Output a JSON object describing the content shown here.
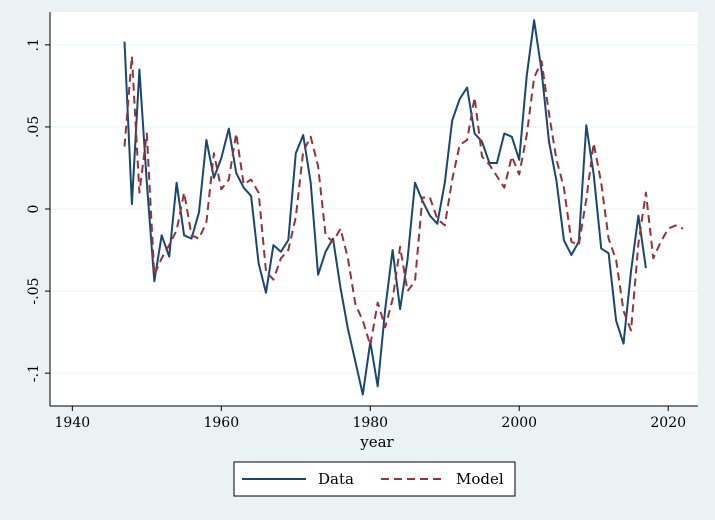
{
  "chart_data": {
    "type": "line",
    "title": "",
    "xlabel": "year",
    "ylabel": "",
    "xlim": [
      1937,
      2024
    ],
    "ylim": [
      -0.12,
      0.12
    ],
    "x_ticks": [
      1940,
      1960,
      1980,
      2000,
      2020
    ],
    "x_tick_labels": [
      "1940",
      "1960",
      "1980",
      "2000",
      "2020"
    ],
    "y_ticks": [
      -0.1,
      -0.05,
      0,
      0.05,
      0.1
    ],
    "y_tick_labels": [
      "-.1",
      "-.05",
      "0",
      ".05",
      ".1"
    ],
    "grid": true,
    "legend_position": "bottom",
    "series": [
      {
        "name": "Data",
        "color": "#1a476f",
        "dash": "solid",
        "x": [
          1947,
          1948,
          1949,
          1950,
          1951,
          1952,
          1953,
          1954,
          1955,
          1956,
          1957,
          1958,
          1959,
          1960,
          1961,
          1962,
          1963,
          1964,
          1965,
          1966,
          1967,
          1968,
          1969,
          1970,
          1971,
          1972,
          1973,
          1974,
          1975,
          1976,
          1977,
          1978,
          1979,
          1980,
          1981,
          1982,
          1983,
          1984,
          1985,
          1986,
          1987,
          1988,
          1989,
          1990,
          1991,
          1992,
          1993,
          1994,
          1995,
          1996,
          1997,
          1998,
          1999,
          2000,
          2001,
          2002,
          2003,
          2004,
          2005,
          2006,
          2007,
          2008,
          2009,
          2010,
          2011,
          2012,
          2013,
          2014,
          2015,
          2016,
          2017
        ],
        "values": [
          0.102,
          0.003,
          0.085,
          0.016,
          -0.044,
          -0.016,
          -0.029,
          0.016,
          -0.016,
          -0.018,
          -0.002,
          0.042,
          0.019,
          0.031,
          0.049,
          0.022,
          0.013,
          0.008,
          -0.033,
          -0.051,
          -0.022,
          -0.026,
          -0.019,
          0.034,
          0.045,
          0.016,
          -0.04,
          -0.026,
          -0.018,
          -0.048,
          -0.073,
          -0.093,
          -0.113,
          -0.081,
          -0.108,
          -0.061,
          -0.025,
          -0.061,
          -0.031,
          0.016,
          0.005,
          -0.004,
          -0.009,
          0.016,
          0.054,
          0.067,
          0.074,
          0.046,
          0.041,
          0.028,
          0.028,
          0.046,
          0.044,
          0.03,
          0.081,
          0.115,
          0.084,
          0.041,
          0.017,
          -0.019,
          -0.028,
          -0.02,
          0.051,
          0.021,
          -0.024,
          -0.027,
          -0.068,
          -0.082,
          -0.038,
          -0.004,
          -0.036
        ]
      },
      {
        "name": "Model",
        "color": "#90353b",
        "dash": "dashed",
        "x": [
          1947,
          1948,
          1949,
          1950,
          1951,
          1952,
          1953,
          1954,
          1955,
          1956,
          1957,
          1958,
          1959,
          1960,
          1961,
          1962,
          1963,
          1964,
          1965,
          1966,
          1967,
          1968,
          1969,
          1970,
          1971,
          1972,
          1973,
          1974,
          1975,
          1976,
          1977,
          1978,
          1979,
          1980,
          1981,
          1982,
          1983,
          1984,
          1985,
          1986,
          1987,
          1988,
          1989,
          1990,
          1991,
          1992,
          1993,
          1994,
          1995,
          1996,
          1997,
          1998,
          1999,
          2000,
          2001,
          2002,
          2003,
          2004,
          2005,
          2006,
          2007,
          2008,
          2009,
          2010,
          2011,
          2012,
          2013,
          2014,
          2015,
          2016,
          2017,
          2018,
          2019,
          2020,
          2021,
          2022
        ],
        "values": [
          0.038,
          0.093,
          0.01,
          0.046,
          -0.04,
          -0.03,
          -0.022,
          -0.013,
          0.01,
          -0.016,
          -0.018,
          -0.008,
          0.034,
          0.012,
          0.018,
          0.046,
          0.015,
          0.018,
          0.01,
          -0.038,
          -0.043,
          -0.03,
          -0.025,
          -0.005,
          0.035,
          0.044,
          0.026,
          -0.016,
          -0.02,
          -0.012,
          -0.03,
          -0.058,
          -0.068,
          -0.083,
          -0.057,
          -0.072,
          -0.055,
          -0.023,
          -0.05,
          -0.044,
          0.007,
          0.007,
          -0.006,
          -0.01,
          0.018,
          0.039,
          0.042,
          0.068,
          0.032,
          0.027,
          0.02,
          0.013,
          0.032,
          0.021,
          0.045,
          0.08,
          0.09,
          0.058,
          0.03,
          0.013,
          -0.02,
          -0.022,
          0.006,
          0.04,
          0.016,
          -0.018,
          -0.031,
          -0.062,
          -0.074,
          -0.021,
          0.01,
          -0.03,
          -0.02,
          -0.012,
          -0.01,
          -0.012
        ]
      }
    ]
  }
}
